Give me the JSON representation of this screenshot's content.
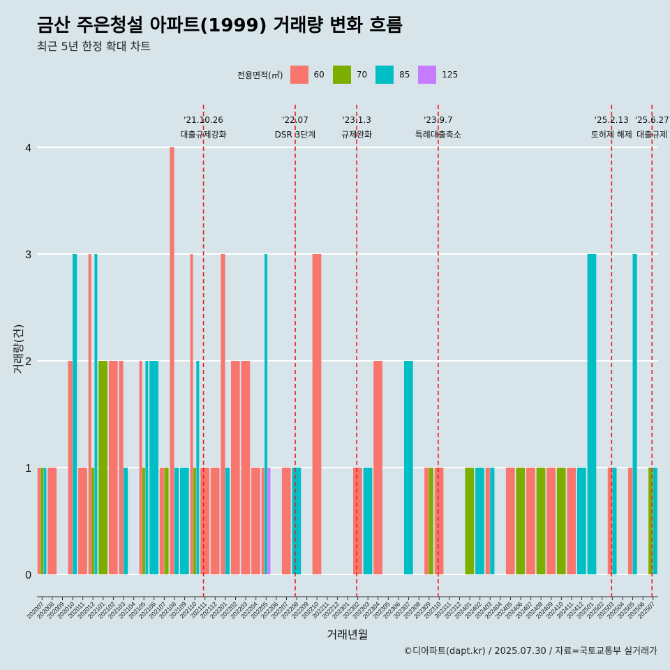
{
  "title": "금산 주은청설 아파트(1999) 거래량 변화 흐름",
  "subtitle": "최근 5년 한정 확대 차트",
  "caption": "©디아파트(dapt.kr) / 2025.07.30 / 자료=국토교통부 실거래가",
  "legend": {
    "title": "전용면적(㎡)",
    "items": [
      {
        "label": "60",
        "color": "#F8766D"
      },
      {
        "label": "70",
        "color": "#7CAE00"
      },
      {
        "label": "85",
        "color": "#00BFC4"
      },
      {
        "label": "125",
        "color": "#C77CFF"
      }
    ]
  },
  "chart_data": {
    "type": "bar",
    "xlabel": "거래년월",
    "ylabel": "거래량(건)",
    "ylim": [
      0,
      4
    ],
    "yticks": [
      0,
      1,
      2,
      3,
      4
    ],
    "categories": [
      "202007",
      "202008",
      "202009",
      "202010",
      "202011",
      "202012",
      "202101",
      "202102",
      "202103",
      "202104",
      "202105",
      "202106",
      "202107",
      "202108",
      "202109",
      "202110",
      "202111",
      "202112",
      "202201",
      "202202",
      "202203",
      "202204",
      "202205",
      "202206",
      "202207",
      "202208",
      "202209",
      "202210",
      "202211",
      "202212",
      "202301",
      "202302",
      "202303",
      "202304",
      "202305",
      "202306",
      "202307",
      "202308",
      "202309",
      "202310",
      "202311",
      "202312",
      "202401",
      "202402",
      "202403",
      "202404",
      "202405",
      "202406",
      "202407",
      "202408",
      "202409",
      "202410",
      "202411",
      "202412",
      "202501",
      "202502",
      "202503",
      "202504",
      "202505",
      "202506",
      "202507"
    ],
    "series": [
      {
        "name": "60",
        "color": "#F8766D",
        "values": [
          1,
          1,
          0,
          2,
          1,
          3,
          0,
          2,
          2,
          0,
          2,
          0,
          1,
          4,
          0,
          3,
          1,
          1,
          3,
          2,
          2,
          1,
          1,
          0,
          1,
          0,
          0,
          3,
          0,
          0,
          0,
          1,
          0,
          2,
          0,
          0,
          0,
          0,
          1,
          1,
          0,
          0,
          0,
          0,
          1,
          0,
          1,
          0,
          1,
          0,
          1,
          0,
          1,
          0,
          0,
          0,
          1,
          0,
          1,
          0,
          0
        ]
      },
      {
        "name": "70",
        "color": "#7CAE00",
        "values": [
          1,
          0,
          0,
          0,
          0,
          1,
          2,
          0,
          0,
          0,
          1,
          0,
          1,
          0,
          0,
          1,
          0,
          0,
          0,
          0,
          0,
          0,
          0,
          0,
          0,
          0,
          0,
          0,
          0,
          0,
          0,
          0,
          0,
          0,
          0,
          0,
          0,
          0,
          1,
          0,
          0,
          0,
          1,
          0,
          0,
          0,
          0,
          1,
          0,
          1,
          0,
          1,
          0,
          0,
          0,
          0,
          0,
          0,
          0,
          0,
          1
        ]
      },
      {
        "name": "85",
        "color": "#00BFC4",
        "values": [
          1,
          0,
          0,
          3,
          0,
          3,
          0,
          0,
          1,
          0,
          2,
          2,
          0,
          1,
          1,
          2,
          0,
          0,
          1,
          0,
          0,
          0,
          3,
          0,
          0,
          1,
          0,
          0,
          0,
          0,
          0,
          0,
          1,
          0,
          0,
          0,
          2,
          0,
          0,
          0,
          0,
          0,
          0,
          1,
          1,
          0,
          0,
          0,
          0,
          0,
          0,
          0,
          0,
          1,
          3,
          0,
          1,
          0,
          3,
          0,
          1
        ]
      },
      {
        "name": "125",
        "color": "#C77CFF",
        "values": [
          0,
          0,
          0,
          0,
          0,
          0,
          0,
          0,
          0,
          0,
          0,
          0,
          0,
          0,
          0,
          0,
          0,
          0,
          0,
          0,
          0,
          0,
          1,
          0,
          0,
          0,
          0,
          0,
          0,
          0,
          0,
          0,
          0,
          0,
          0,
          0,
          0,
          0,
          0,
          0,
          0,
          0,
          0,
          0,
          0,
          0,
          0,
          0,
          0,
          0,
          0,
          0,
          0,
          0,
          0,
          0,
          0,
          0,
          0,
          0,
          0
        ]
      }
    ],
    "events": [
      {
        "date": "'21.10.26",
        "label": "대출규제강화",
        "x": 15.85
      },
      {
        "date": "'22.07",
        "label": "DSR 3단계",
        "x": 24.86
      },
      {
        "date": "'23.1.3",
        "label": "규제완화",
        "x": 30.9
      },
      {
        "date": "'23.9.7",
        "label": "특례대출축소",
        "x": 38.9
      },
      {
        "date": "'25.2.13",
        "label": "토허제 해제",
        "x": 55.93
      },
      {
        "date": "'25.6.27",
        "label": "대출규제",
        "x": 59.9
      }
    ]
  }
}
